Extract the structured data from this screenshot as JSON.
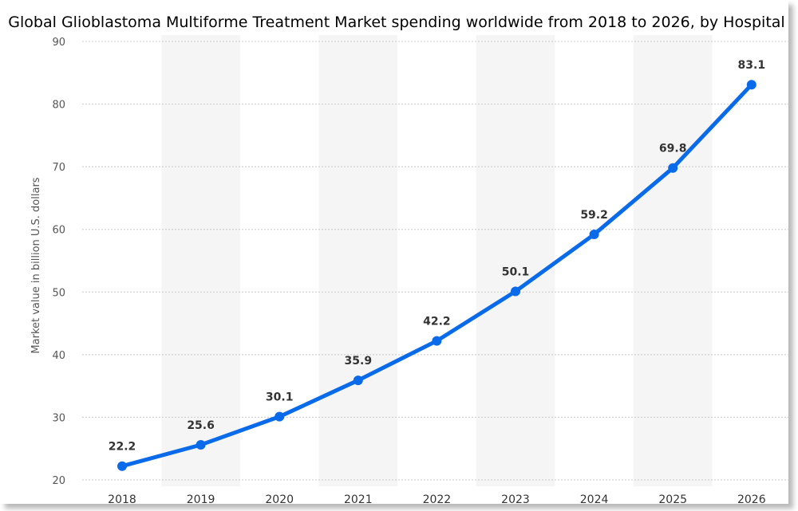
{
  "chart_data": {
    "type": "line",
    "title": "Global Glioblastoma Multiforme Treatment Market spending worldwide from 2018 to 2026, by Hospital",
    "xlabel": "",
    "ylabel": "Market value in billion U.S. dollars",
    "categories": [
      "2018",
      "2019",
      "2020",
      "2021",
      "2022",
      "2023",
      "2024",
      "2025",
      "2026"
    ],
    "series": [
      {
        "values": [
          22.2,
          25.6,
          30.1,
          35.9,
          42.2,
          50.1,
          59.2,
          69.8,
          83.1
        ],
        "color": "#0a6bea"
      }
    ],
    "data_labels": [
      "22.2",
      "25.6",
      "30.1",
      "35.9",
      "42.2",
      "50.1",
      "59.2",
      "69.8",
      "83.1"
    ],
    "ylim": [
      20,
      90
    ],
    "yticks": [
      "20",
      "30",
      "40",
      "50",
      "60",
      "70",
      "80",
      "90"
    ],
    "grid": true,
    "alternating_column_bands": true,
    "band_color": "#f5f5f5",
    "grid_color": "#c8c8c8",
    "legend": "none"
  }
}
